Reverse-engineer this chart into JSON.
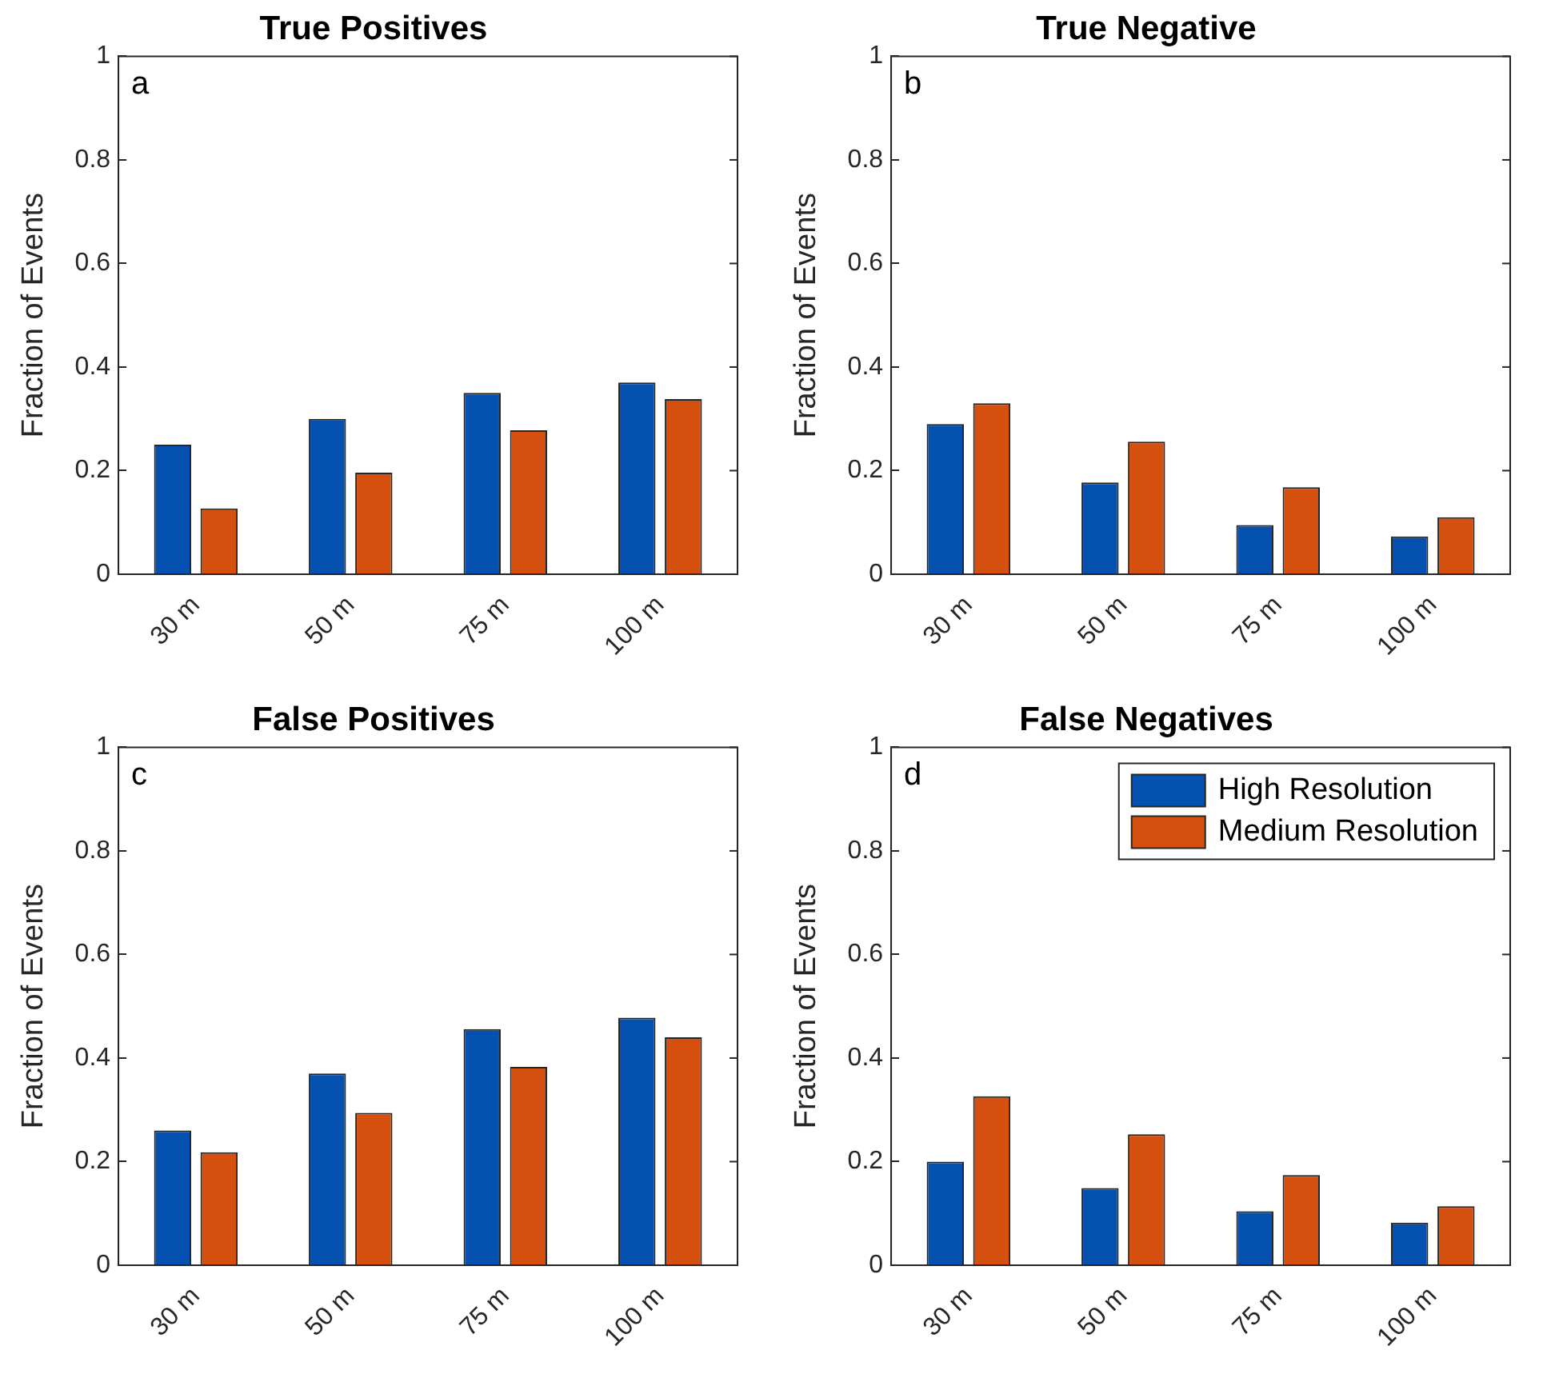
{
  "chart_data": [
    {
      "type": "bar",
      "title": "True Positives",
      "ylabel": "Fraction of Events",
      "categories": [
        "30 m",
        "50 m",
        "75 m",
        "100 m"
      ],
      "series": [
        {
          "color": "#0451b0",
          "values": [
            0.25,
            0.3,
            0.35,
            0.37
          ]
        },
        {
          "color": "#d5500f",
          "values": [
            0.127,
            0.196,
            0.278,
            0.338
          ]
        }
      ],
      "ylim": [
        0,
        1
      ],
      "yticks": [
        0,
        0.2,
        0.4,
        0.6,
        0.8,
        1
      ],
      "grid": false,
      "legend": false,
      "annotations": [
        "a"
      ]
    },
    {
      "type": "bar",
      "title": "True Negative",
      "ylabel": "Fraction of Events",
      "categories": [
        "30 m",
        "50 m",
        "75 m",
        "100 m"
      ],
      "series": [
        {
          "color": "#0451b0",
          "values": [
            0.29,
            0.177,
            0.095,
            0.073
          ]
        },
        {
          "color": "#d5500f",
          "values": [
            0.33,
            0.256,
            0.168,
            0.11
          ]
        }
      ],
      "ylim": [
        0,
        1
      ],
      "yticks": [
        0,
        0.2,
        0.4,
        0.6,
        0.8,
        1
      ],
      "grid": false,
      "legend": false,
      "annotations": [
        "b"
      ]
    },
    {
      "type": "bar",
      "title": "False Positives",
      "ylabel": "Fraction of Events",
      "categories": [
        "30 m",
        "50 m",
        "75 m",
        "100 m"
      ],
      "series": [
        {
          "color": "#0451b0",
          "values": [
            0.26,
            0.37,
            0.456,
            0.478
          ]
        },
        {
          "color": "#d5500f",
          "values": [
            0.218,
            0.294,
            0.383,
            0.44
          ]
        }
      ],
      "ylim": [
        0,
        1
      ],
      "yticks": [
        0,
        0.2,
        0.4,
        0.6,
        0.8,
        1
      ],
      "grid": false,
      "legend": false,
      "annotations": [
        "c"
      ]
    },
    {
      "type": "bar",
      "title": "False Negatives",
      "ylabel": "Fraction of Events",
      "categories": [
        "30 m",
        "50 m",
        "75 m",
        "100 m"
      ],
      "series": [
        {
          "name": "High Resolution",
          "color": "#0451b0",
          "values": [
            0.2,
            0.149,
            0.104,
            0.082
          ]
        },
        {
          "name": "Medium Resolution",
          "color": "#d5500f",
          "values": [
            0.326,
            0.253,
            0.174,
            0.114
          ]
        }
      ],
      "ylim": [
        0,
        1
      ],
      "yticks": [
        0,
        0.2,
        0.4,
        0.6,
        0.8,
        1
      ],
      "grid": false,
      "legend": "top right",
      "annotations": [
        "d"
      ]
    }
  ]
}
